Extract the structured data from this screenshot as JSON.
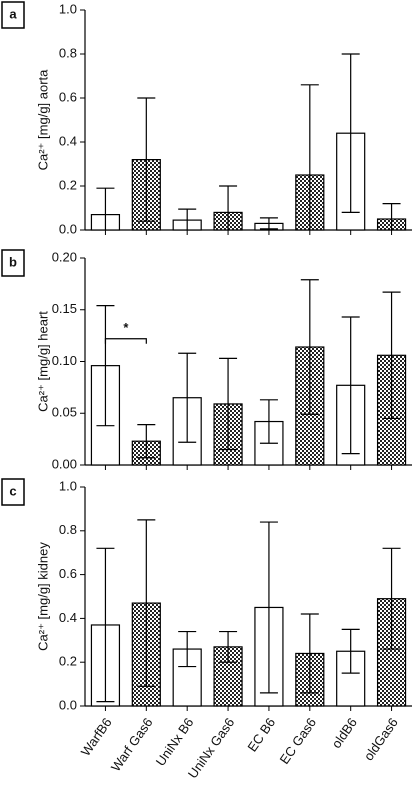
{
  "chart_data": [
    {
      "type": "bar",
      "panel": "a",
      "ylabel": "Ca²⁺ [mg/g] aorta",
      "values": [
        0.07,
        0.32,
        0.045,
        0.08,
        0.03,
        0.25,
        0.44,
        0.05
      ],
      "errors": [
        0.12,
        0.28,
        0.05,
        0.12,
        0.025,
        0.41,
        0.36,
        0.07
      ],
      "bar_styles": [
        "plain",
        "checkered",
        "plain",
        "checkered",
        "plain",
        "checkered",
        "plain",
        "checkered"
      ],
      "ylim": [
        0,
        1
      ],
      "yticks": [
        {
          "value": 0,
          "label": "0.0"
        },
        0.2,
        0.4,
        0.6,
        0.8,
        {
          "value": 1,
          "label": "1.0"
        }
      ]
    },
    {
      "type": "bar",
      "panel": "b",
      "ylabel": "Ca²⁺ [mg/g] heart",
      "annotation": "*",
      "values": [
        0.096,
        0.023,
        0.065,
        0.059,
        0.042,
        0.114,
        0.077,
        0.106
      ],
      "errors": [
        0.058,
        0.016,
        0.043,
        0.044,
        0.021,
        0.065,
        0.066,
        0.061
      ],
      "bar_styles": [
        "plain",
        "checkered",
        "plain",
        "checkered",
        "plain",
        "checkered",
        "plain",
        "checkered"
      ],
      "ylim": [
        0,
        0.2
      ],
      "yticks": [
        {
          "value": 0,
          "label": "0.00"
        },
        0.05,
        {
          "value": 0.1,
          "label": "0.10"
        },
        0.15,
        {
          "value": 0.2,
          "label": "0.20"
        }
      ]
    },
    {
      "type": "bar",
      "panel": "c",
      "ylabel": "Ca²⁺ [mg/g] kidney",
      "categories": [
        "WarfB6",
        "Warf Gas6",
        "UniNx B6",
        "UniNx Gas6",
        "EC B6",
        "EC Gas6",
        "oldB6",
        "oldGas6"
      ],
      "values": [
        0.37,
        0.47,
        0.26,
        0.27,
        0.45,
        0.24,
        0.25,
        0.49
      ],
      "errors": [
        0.35,
        0.38,
        0.08,
        0.07,
        0.39,
        0.18,
        0.1,
        0.23
      ],
      "bar_styles": [
        "plain",
        "checkered",
        "plain",
        "checkered",
        "plain",
        "checkered",
        "plain",
        "checkered"
      ],
      "ylim": [
        0,
        1
      ],
      "yticks": [
        {
          "value": 0,
          "label": "0.0"
        },
        0.2,
        0.4,
        0.6,
        0.8,
        {
          "value": 1,
          "label": "1.0"
        }
      ]
    }
  ]
}
